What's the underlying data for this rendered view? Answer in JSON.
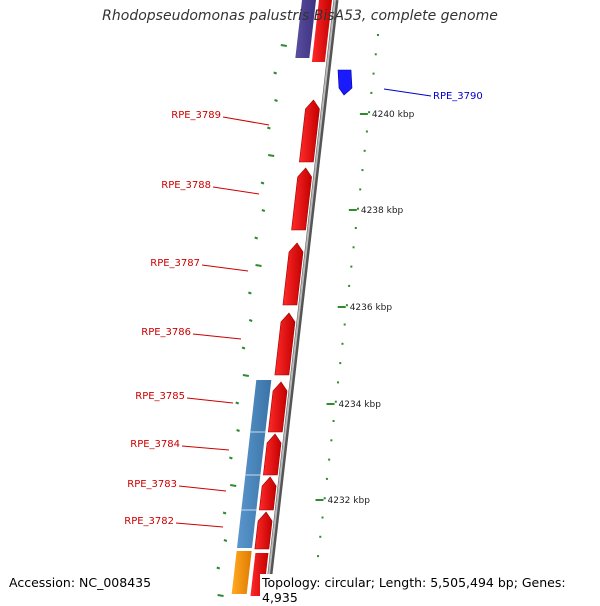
{
  "title": "Rhodopseudomonas palustris BisA53, complete genome",
  "accession": "Accession: NC_008435",
  "summary": "Topology: circular; Length: 5,505,494 bp; Genes: 4,935",
  "colors": {
    "cds": "#ff0000",
    "cds_highlight": "#1a1aff",
    "operon": "#4a86bd",
    "other_feature": "#ff9900",
    "dark_feature": "#4a3e8e",
    "backbone": "#888888",
    "ticks": "#2e8b2e",
    "label_red": "#cc0000",
    "label_blue": "#0000cc"
  },
  "scale_ticks": [
    "4240 kbp",
    "4238 kbp",
    "4236 kbp",
    "4234 kbp",
    "4232 kbp"
  ],
  "genes": [
    {
      "name": "RPE_3790"
    },
    {
      "name": "RPE_3789"
    },
    {
      "name": "RPE_3788"
    },
    {
      "name": "RPE_3787"
    },
    {
      "name": "RPE_3786"
    },
    {
      "name": "RPE_3785"
    },
    {
      "name": "RPE_3784"
    },
    {
      "name": "RPE_3783"
    },
    {
      "name": "RPE_3782"
    }
  ]
}
